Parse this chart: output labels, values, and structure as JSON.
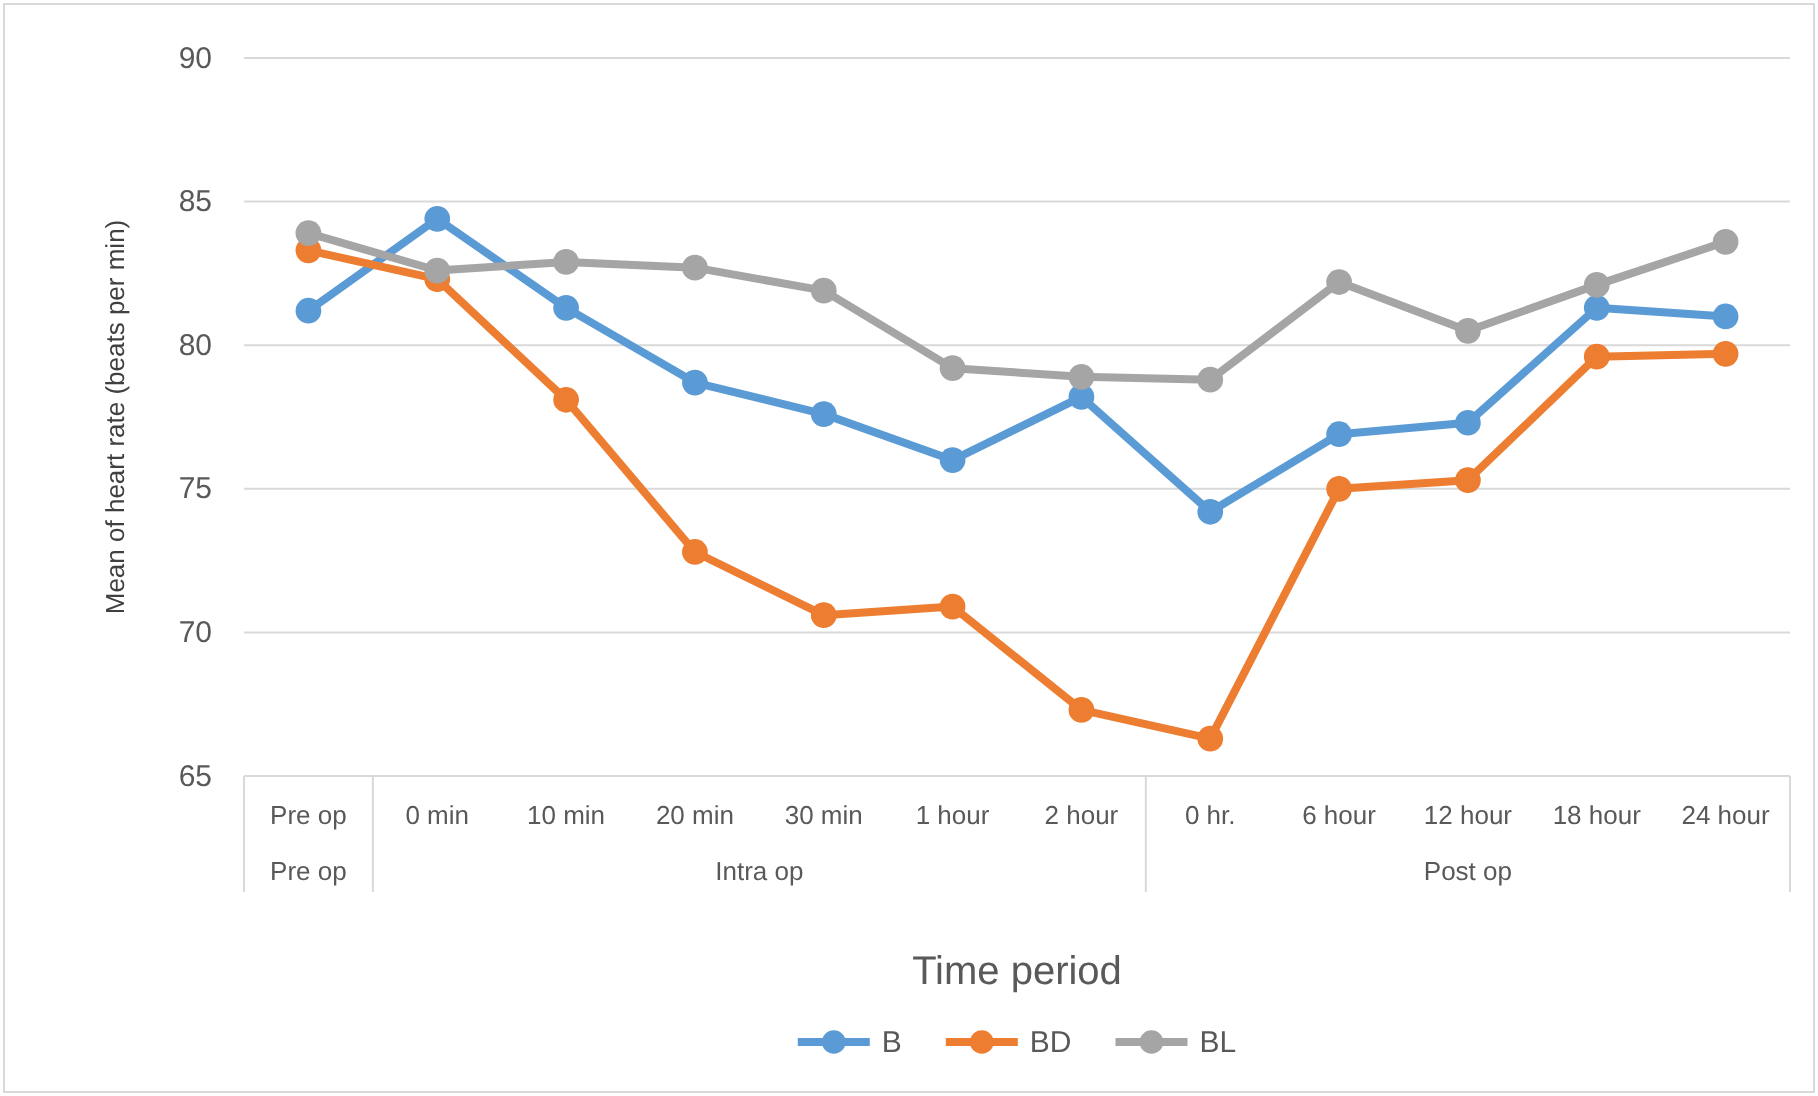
{
  "chart_data": {
    "type": "line",
    "xlabel": "Time period",
    "ylabel": "Mean of heart rate (beats per min)",
    "categories": [
      "Pre op",
      "0 min",
      "10 min",
      "20 min",
      "30 min",
      "1 hour",
      "2 hour",
      "0 hr.",
      "6 hour",
      "12 hour",
      "18 hour",
      "24 hour"
    ],
    "series": [
      {
        "name": "B",
        "color": "#5b9bd5",
        "values": [
          81.2,
          84.4,
          81.3,
          78.7,
          77.6,
          76.0,
          78.2,
          74.2,
          76.9,
          77.3,
          81.3,
          81.0
        ]
      },
      {
        "name": "BD",
        "color": "#ed7d31",
        "values": [
          83.3,
          82.3,
          78.1,
          72.8,
          70.6,
          70.9,
          67.3,
          66.3,
          75.0,
          75.3,
          79.6,
          79.7
        ]
      },
      {
        "name": "BL",
        "color": "#a5a5a5",
        "values": [
          83.9,
          82.6,
          82.9,
          82.7,
          81.9,
          79.2,
          78.9,
          78.8,
          82.2,
          80.5,
          82.1,
          83.6
        ]
      }
    ],
    "annotations": [
      "Pre op",
      "Intra op",
      "Post op"
    ],
    "ylim": [
      65,
      90
    ],
    "yticks": [
      65,
      70,
      75,
      80,
      85,
      90
    ],
    "grid": "y",
    "legend": "bottom",
    "marker": "circle",
    "line_style": "solid"
  }
}
